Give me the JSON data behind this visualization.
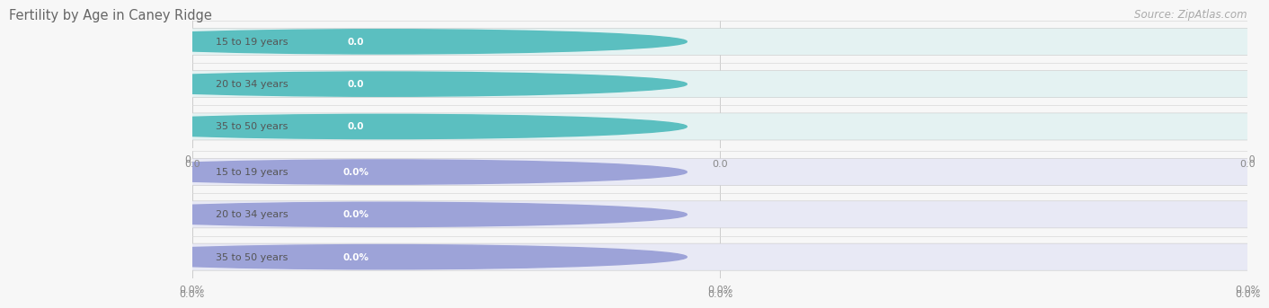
{
  "title": "Fertility by Age in Caney Ridge",
  "source_text": "Source: ZipAtlas.com",
  "top_section": {
    "categories": [
      "15 to 19 years",
      "20 to 34 years",
      "35 to 50 years"
    ],
    "values": [
      0.0,
      0.0,
      0.0
    ],
    "bar_bg_color": "#e4f2f2",
    "bar_value_bg_color": "#5bbfc0",
    "label_text_color": "#555555",
    "value_text_color": "#ffffff",
    "circle_color": "#5bbfc0",
    "xtick_labels": [
      "0.0",
      "0.0",
      "0.0"
    ]
  },
  "bottom_section": {
    "categories": [
      "15 to 19 years",
      "20 to 34 years",
      "35 to 50 years"
    ],
    "values": [
      0.0,
      0.0,
      0.0
    ],
    "bar_bg_color": "#e8e9f5",
    "bar_value_bg_color": "#9da3d8",
    "label_text_color": "#555555",
    "value_text_color": "#ffffff",
    "circle_color": "#9da3d8",
    "xtick_labels": [
      "0.0%",
      "0.0%",
      "0.0%"
    ]
  },
  "bg_color": "#f7f7f7",
  "bar_separator_color": "#d8d8d8",
  "grid_line_color": "#cccccc",
  "title_color": "#666666",
  "title_fontsize": 10.5,
  "source_fontsize": 8.5
}
